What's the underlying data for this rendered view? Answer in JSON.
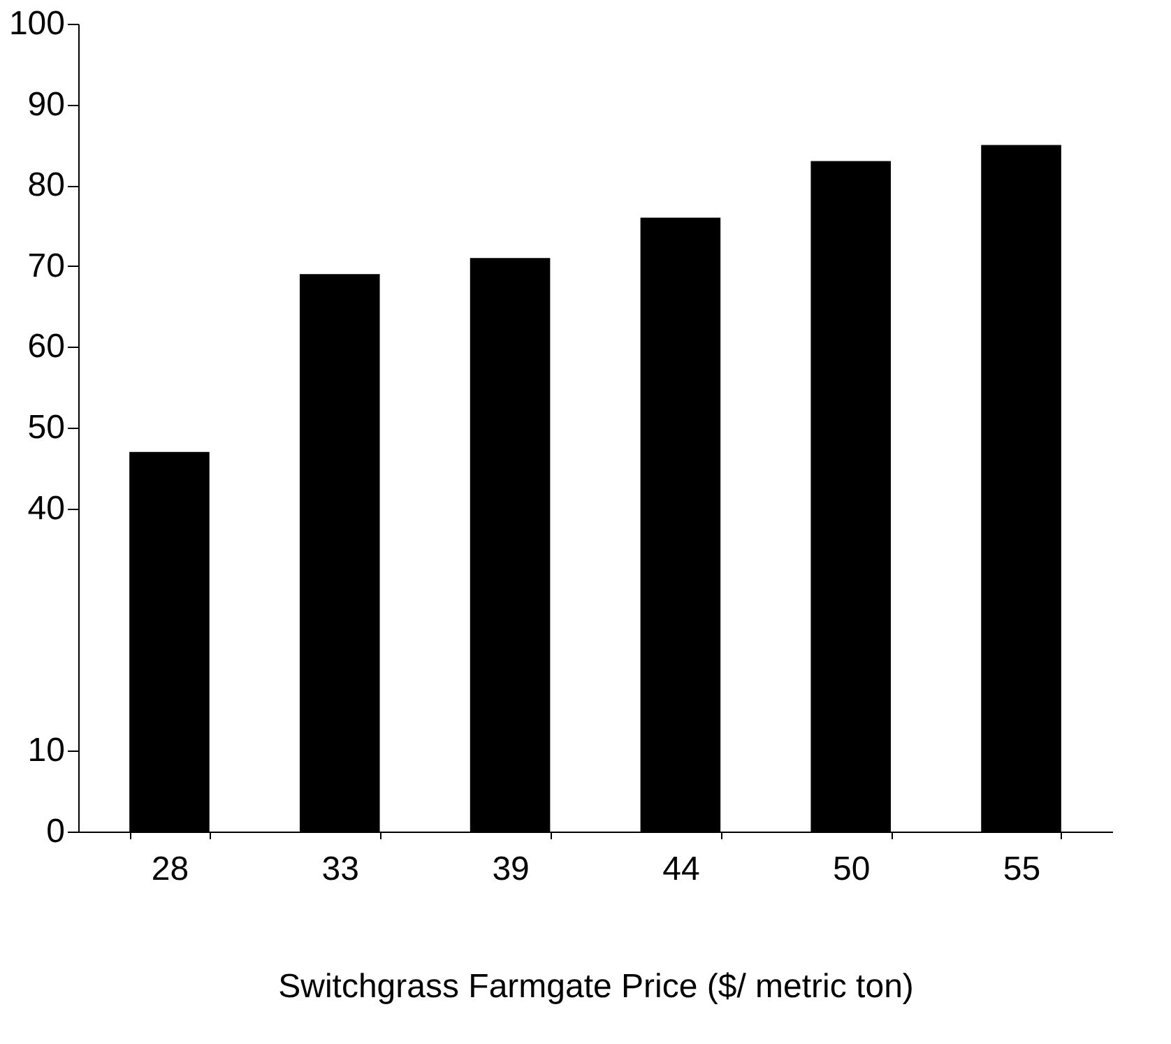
{
  "chart_data": {
    "type": "bar",
    "categories": [
      "28",
      "33",
      "39",
      "44",
      "50",
      "55"
    ],
    "values": [
      47,
      69,
      71,
      76,
      83,
      85
    ],
    "color": "#000000",
    "ylim": [
      0,
      100
    ],
    "yticks": [
      0,
      10,
      40,
      50,
      60,
      70,
      80,
      90,
      100
    ],
    "grid": false,
    "xlabel": "Switchgrass Farmgate Price ($/ metric ton)"
  }
}
